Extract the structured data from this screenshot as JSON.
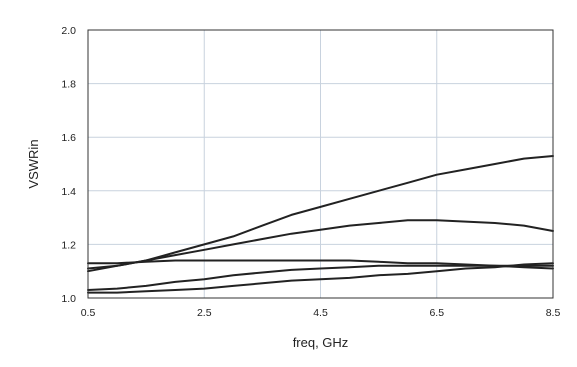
{
  "chart_data": {
    "type": "line",
    "title": "",
    "xlabel": "freq, GHz",
    "ylabel": "VSWRin",
    "xlim": [
      0.5,
      8.5
    ],
    "ylim": [
      1.0,
      2.0
    ],
    "x_ticks": [
      "0.5",
      "2.5",
      "4.5",
      "6.5",
      "8.5"
    ],
    "y_ticks": [
      "1.0",
      "1.2",
      "1.4",
      "1.6",
      "1.8",
      "2.0"
    ],
    "x_tick_values": [
      0.5,
      2.5,
      4.5,
      6.5,
      8.5
    ],
    "y_tick_values": [
      1.0,
      1.2,
      1.4,
      1.6,
      1.8,
      2.0
    ],
    "grid": true,
    "colors": {
      "line": "#222222",
      "grid": "#c8d2de",
      "axis": "#333333"
    },
    "series": [
      {
        "x": [
          0.5,
          1.0,
          1.5,
          2.0,
          2.5,
          3.0,
          3.5,
          4.0,
          4.5,
          5.0,
          5.5,
          6.0,
          6.5,
          7.0,
          7.5,
          8.0,
          8.5
        ],
        "y": [
          1.1,
          1.12,
          1.14,
          1.17,
          1.2,
          1.23,
          1.27,
          1.31,
          1.34,
          1.37,
          1.4,
          1.43,
          1.46,
          1.48,
          1.5,
          1.52,
          1.53
        ]
      },
      {
        "x": [
          0.5,
          1.0,
          1.5,
          2.0,
          2.5,
          3.0,
          3.5,
          4.0,
          4.5,
          5.0,
          5.5,
          6.0,
          6.5,
          7.0,
          7.5,
          8.0,
          8.5
        ],
        "y": [
          1.11,
          1.12,
          1.14,
          1.16,
          1.18,
          1.2,
          1.22,
          1.24,
          1.255,
          1.27,
          1.28,
          1.29,
          1.29,
          1.285,
          1.28,
          1.27,
          1.25
        ]
      },
      {
        "x": [
          0.5,
          1.0,
          1.5,
          2.0,
          2.5,
          3.0,
          3.5,
          4.0,
          4.5,
          5.0,
          5.5,
          6.0,
          6.5,
          7.0,
          7.5,
          8.0,
          8.5
        ],
        "y": [
          1.13,
          1.13,
          1.135,
          1.14,
          1.14,
          1.14,
          1.14,
          1.14,
          1.14,
          1.14,
          1.135,
          1.13,
          1.13,
          1.125,
          1.12,
          1.115,
          1.11
        ]
      },
      {
        "x": [
          0.5,
          1.0,
          1.5,
          2.0,
          2.5,
          3.0,
          3.5,
          4.0,
          4.5,
          5.0,
          5.5,
          6.0,
          6.5,
          7.0,
          7.5,
          8.0,
          8.5
        ],
        "y": [
          1.03,
          1.035,
          1.045,
          1.06,
          1.07,
          1.085,
          1.095,
          1.105,
          1.11,
          1.115,
          1.12,
          1.12,
          1.12,
          1.12,
          1.12,
          1.12,
          1.12
        ]
      },
      {
        "x": [
          0.5,
          1.0,
          1.5,
          2.0,
          2.5,
          3.0,
          3.5,
          4.0,
          4.5,
          5.0,
          5.5,
          6.0,
          6.5,
          7.0,
          7.5,
          8.0,
          8.5
        ],
        "y": [
          1.02,
          1.02,
          1.025,
          1.03,
          1.035,
          1.045,
          1.055,
          1.065,
          1.07,
          1.075,
          1.085,
          1.09,
          1.1,
          1.11,
          1.115,
          1.125,
          1.13
        ]
      }
    ]
  }
}
